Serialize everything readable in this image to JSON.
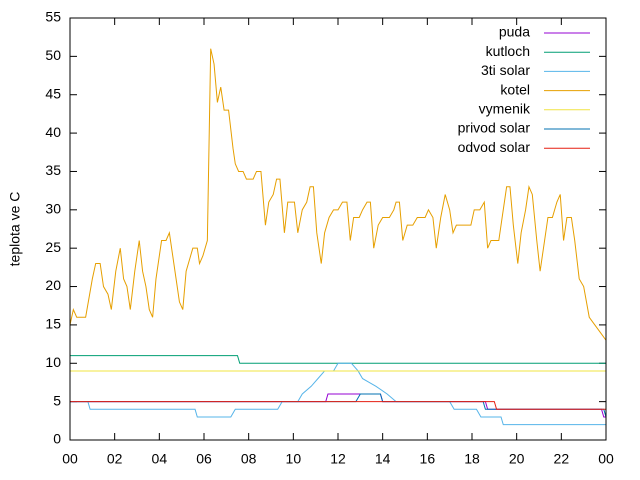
{
  "chart_data": {
    "type": "line",
    "ylabel": "teplota ve C",
    "xlim": [
      0,
      24
    ],
    "xticks": [
      {
        "value": 0,
        "label": "00"
      },
      {
        "value": 2,
        "label": "02"
      },
      {
        "value": 4,
        "label": "04"
      },
      {
        "value": 6,
        "label": "06"
      },
      {
        "value": 8,
        "label": "08"
      },
      10,
      12,
      14,
      16,
      18,
      20,
      22,
      {
        "value": 24,
        "label": "00"
      }
    ],
    "ylim": [
      0,
      55
    ],
    "yticks": [
      0,
      5,
      10,
      15,
      20,
      25,
      30,
      35,
      40,
      45,
      50,
      55
    ],
    "grid": false,
    "legend": "top right",
    "series": [
      {
        "name": "puda",
        "color": "#9400d3",
        "x": [
          0,
          11.45,
          11.55,
          13.9,
          14.0,
          18.6,
          18.7,
          23.8,
          23.9,
          24
        ],
        "values": [
          5,
          5,
          6,
          6,
          5,
          5,
          4,
          4,
          3,
          3
        ]
      },
      {
        "name": "kutloch",
        "color": "#009e73",
        "x": [
          0,
          7.5,
          7.6,
          24
        ],
        "values": [
          11,
          11,
          10,
          10
        ]
      },
      {
        "name": "3ti solar",
        "color": "#56b4e9",
        "x": [
          0,
          0.8,
          0.9,
          5.6,
          5.7,
          7.2,
          7.4,
          9.3,
          9.5,
          10.2,
          10.4,
          10.8,
          11.1,
          11.4,
          11.8,
          12.0,
          12.6,
          12.9,
          13.1,
          13.7,
          14.2,
          14.6,
          17.0,
          17.2,
          18.2,
          18.4,
          19.3,
          19.4,
          24
        ],
        "values": [
          5,
          5,
          4,
          4,
          3,
          3,
          4,
          4,
          5,
          5,
          6,
          7,
          8,
          9,
          9,
          10,
          10,
          9,
          8,
          7,
          6,
          5,
          5,
          4,
          4,
          3,
          3,
          2,
          2
        ]
      },
      {
        "name": "kotel",
        "color": "#e69f00",
        "x": [
          0,
          0.15,
          0.3,
          0.7,
          1.0,
          1.15,
          1.35,
          1.5,
          1.7,
          1.85,
          2.05,
          2.25,
          2.4,
          2.55,
          2.7,
          2.9,
          3.1,
          3.25,
          3.4,
          3.55,
          3.7,
          3.85,
          4.0,
          4.1,
          4.3,
          4.45,
          4.6,
          4.75,
          4.9,
          5.05,
          5.2,
          5.4,
          5.5,
          5.7,
          5.8,
          5.95,
          6.15,
          6.3,
          6.45,
          6.6,
          6.75,
          6.9,
          7.1,
          7.3,
          7.4,
          7.55,
          7.75,
          7.9,
          8.2,
          8.35,
          8.55,
          8.75,
          8.9,
          9.1,
          9.25,
          9.4,
          9.6,
          9.75,
          10.05,
          10.2,
          10.4,
          10.6,
          10.75,
          10.9,
          11.05,
          11.25,
          11.4,
          11.6,
          11.8,
          12.0,
          12.2,
          12.4,
          12.55,
          12.7,
          12.95,
          13.1,
          13.3,
          13.45,
          13.6,
          13.8,
          14.0,
          14.3,
          14.5,
          14.6,
          14.75,
          14.9,
          15.1,
          15.35,
          15.55,
          15.9,
          16.05,
          16.25,
          16.4,
          16.6,
          16.8,
          17.0,
          17.15,
          17.3,
          17.6,
          17.95,
          18.1,
          18.35,
          18.55,
          18.7,
          18.85,
          19.2,
          19.35,
          19.55,
          19.7,
          19.85,
          20.05,
          20.2,
          20.4,
          20.55,
          20.7,
          20.9,
          21.05,
          21.25,
          21.4,
          21.6,
          21.8,
          21.95,
          22.1,
          22.25,
          22.45,
          22.6,
          22.8,
          23.0,
          23.25,
          23.5,
          23.75,
          24.0
        ],
        "values": [
          15,
          17,
          16,
          16,
          21,
          23,
          23,
          20,
          19,
          17,
          22,
          25,
          21,
          20,
          17,
          22,
          26,
          22,
          20,
          17,
          16,
          21,
          24,
          26,
          26,
          27,
          24,
          21,
          18,
          17,
          22,
          24,
          25,
          25,
          23,
          24,
          26,
          51,
          49,
          44,
          46,
          43,
          43,
          38,
          36,
          35,
          35,
          34,
          34,
          35,
          35,
          28,
          31,
          32,
          34,
          34,
          27,
          31,
          31,
          27,
          30,
          31,
          33,
          33,
          27,
          23,
          27,
          29,
          30,
          30,
          31,
          31,
          26,
          29,
          29,
          30,
          31,
          31,
          25,
          28,
          29,
          29,
          30,
          31,
          31,
          26,
          28,
          28,
          29,
          29,
          30,
          29,
          25,
          29,
          32,
          30,
          27,
          28,
          28,
          28,
          30,
          30,
          31,
          25,
          26,
          26,
          29,
          33,
          33,
          28,
          23,
          27,
          30,
          33,
          32,
          26,
          22,
          26,
          29,
          29,
          31,
          32,
          26,
          29,
          29,
          26,
          21,
          20,
          16,
          15,
          14,
          13
        ]
      },
      {
        "name": "vymenik",
        "color": "#f0e442",
        "x": [
          0,
          24
        ],
        "values": [
          9,
          9
        ]
      },
      {
        "name": "privod solar",
        "color": "#0072b2",
        "x": [
          0,
          12.8,
          13.0,
          13.9,
          14.0,
          18.5,
          18.6,
          23.9,
          24
        ],
        "values": [
          5,
          5,
          6,
          6,
          5,
          5,
          4,
          4,
          3
        ]
      },
      {
        "name": "odvod solar",
        "color": "#e51e10",
        "x": [
          0,
          19.0,
          19.1,
          24
        ],
        "values": [
          5,
          5,
          4,
          4
        ]
      }
    ]
  }
}
